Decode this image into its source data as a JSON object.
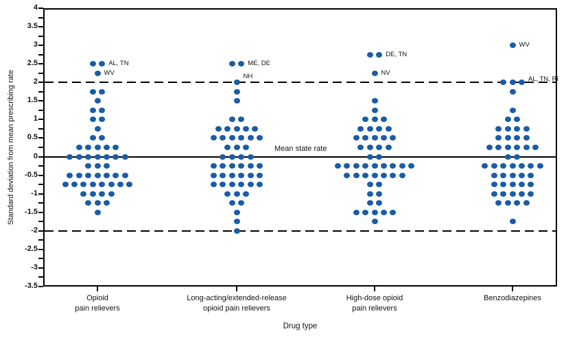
{
  "figure": {
    "y_axis_title": "Standard deviation from mean prescribing rate",
    "x_axis_title": "Drug type",
    "mean_line_label": "Mean state rate"
  },
  "colors": {
    "dot": "#1A5DA6",
    "line": "#000000",
    "text": "#111111"
  },
  "chart_data": {
    "type": "scatter",
    "subtype": "dot-distribution-by-state",
    "title": "",
    "xlabel": "Drug type",
    "ylabel": "Standard deviation from mean prescribing rate",
    "ylim": [
      -3.5,
      4
    ],
    "ytick_minor_step": 0.25,
    "ytick_label_step": 0.5,
    "ytick_labels": [
      "4",
      "3.5",
      "3",
      "2.5",
      "2",
      "1.5",
      "1",
      "0.5",
      "0",
      "-0.5",
      "-1",
      "-1.5",
      "-2",
      "-2.5",
      "-3",
      "-3.5"
    ],
    "grid": false,
    "reference_lines": [
      {
        "value": 0,
        "style": "solid",
        "label": "Mean state rate"
      },
      {
        "value": 2,
        "style": "dashed",
        "label": ""
      },
      {
        "value": -2,
        "style": "dashed",
        "label": ""
      }
    ],
    "categories": [
      {
        "label_lines": [
          "Opioid",
          "pain relievers"
        ],
        "rows": [
          {
            "v": 2.5,
            "n": 2
          },
          {
            "v": 2.25,
            "n": 1
          },
          {
            "v": 1.75,
            "n": 2
          },
          {
            "v": 1.5,
            "n": 1
          },
          {
            "v": 1.25,
            "n": 2
          },
          {
            "v": 1,
            "n": 2
          },
          {
            "v": 0.75,
            "n": 1
          },
          {
            "v": 0.5,
            "n": 2
          },
          {
            "v": 0.25,
            "n": 5
          },
          {
            "v": 0,
            "n": 7
          },
          {
            "v": -0.25,
            "n": 3
          },
          {
            "v": -0.5,
            "n": 7
          },
          {
            "v": -0.75,
            "n": 8
          },
          {
            "v": -1,
            "n": 4
          },
          {
            "v": -1.25,
            "n": 3
          },
          {
            "v": -1.5,
            "n": 1
          }
        ],
        "annotations": [
          {
            "v": 2.5,
            "text": "AL, TN",
            "dy": 0
          },
          {
            "v": 2.25,
            "text": "WV",
            "dy": 0
          }
        ]
      },
      {
        "label_lines": [
          "Long-acting/extended-release",
          "opioid pain relievers"
        ],
        "rows": [
          {
            "v": 2.5,
            "n": 2
          },
          {
            "v": 2,
            "n": 1
          },
          {
            "v": 1.75,
            "n": 1
          },
          {
            "v": 1.5,
            "n": 1
          },
          {
            "v": 1,
            "n": 2
          },
          {
            "v": 0.75,
            "n": 5
          },
          {
            "v": 0.5,
            "n": 6
          },
          {
            "v": 0.25,
            "n": 3
          },
          {
            "v": 0,
            "n": 4
          },
          {
            "v": -0.25,
            "n": 6
          },
          {
            "v": -0.5,
            "n": 6
          },
          {
            "v": -0.75,
            "n": 6
          },
          {
            "v": -1,
            "n": 3
          },
          {
            "v": -1.25,
            "n": 2
          },
          {
            "v": -1.5,
            "n": 1
          },
          {
            "v": -1.75,
            "n": 1
          },
          {
            "v": -2,
            "n": 1
          }
        ],
        "annotations": [
          {
            "v": 2.5,
            "text": "ME, DE",
            "dy": 0
          },
          {
            "v": 2,
            "text": "NH",
            "dy": -8
          }
        ]
      },
      {
        "label_lines": [
          "High-dose opioid",
          "pain relievers"
        ],
        "rows": [
          {
            "v": 2.75,
            "n": 2
          },
          {
            "v": 2.25,
            "n": 1
          },
          {
            "v": 1.5,
            "n": 1
          },
          {
            "v": 1.25,
            "n": 1
          },
          {
            "v": 1,
            "n": 3
          },
          {
            "v": 0.75,
            "n": 4
          },
          {
            "v": 0.5,
            "n": 5
          },
          {
            "v": 0.25,
            "n": 4
          },
          {
            "v": 0,
            "n": 2
          },
          {
            "v": -0.25,
            "n": 9
          },
          {
            "v": -0.5,
            "n": 7
          },
          {
            "v": -0.75,
            "n": 2
          },
          {
            "v": -1,
            "n": 2
          },
          {
            "v": -1.25,
            "n": 2
          },
          {
            "v": -1.5,
            "n": 5
          },
          {
            "v": -1.75,
            "n": 1
          }
        ],
        "annotations": [
          {
            "v": 2.75,
            "text": "DE, TN",
            "dy": 0
          },
          {
            "v": 2.25,
            "text": "NV",
            "dy": 0
          }
        ]
      },
      {
        "label_lines": [
          "Benzodiazepines"
        ],
        "rows": [
          {
            "v": 3,
            "n": 1
          },
          {
            "v": 2,
            "n": 3
          },
          {
            "v": 1.75,
            "n": 1
          },
          {
            "v": 1.25,
            "n": 1
          },
          {
            "v": 1,
            "n": 2
          },
          {
            "v": 0.75,
            "n": 4
          },
          {
            "v": 0.5,
            "n": 4
          },
          {
            "v": 0.25,
            "n": 6
          },
          {
            "v": 0,
            "n": 2
          },
          {
            "v": -0.25,
            "n": 7
          },
          {
            "v": -0.5,
            "n": 5
          },
          {
            "v": -0.75,
            "n": 5
          },
          {
            "v": -1,
            "n": 5
          },
          {
            "v": -1.25,
            "n": 4
          },
          {
            "v": -1.75,
            "n": 1
          }
        ],
        "annotations": [
          {
            "v": 3,
            "text": "WV",
            "dy": 0
          },
          {
            "v": 2,
            "text": "AL, TN, RI",
            "dy": -4
          }
        ]
      }
    ]
  }
}
